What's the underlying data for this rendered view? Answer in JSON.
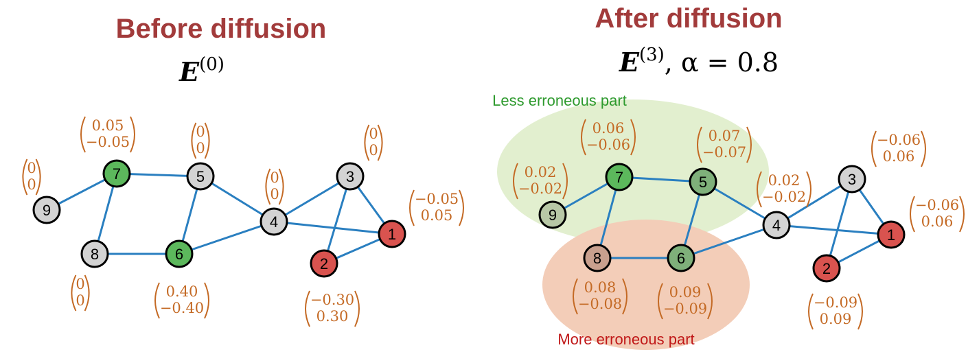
{
  "left_panel": {
    "title": "Before diffusion",
    "formula": {
      "symbol": "E",
      "superscript": "(0)",
      "suffix": ""
    }
  },
  "right_panel": {
    "title": "After diffusion",
    "formula": {
      "symbol": "E",
      "superscript": "(3)",
      "suffix": ", α = 0.8"
    },
    "region_green_label": "Less erroneous part",
    "region_red_label": "More erroneous part"
  },
  "colors": {
    "title": "#a23b3b",
    "edge": "#2a7fc0",
    "vector_text": "#c46a25",
    "node_gray": "#d3d3d3",
    "node_green": "#5cb85c",
    "node_red": "#d9534f",
    "region_green": "#e2efcf",
    "region_red": "#f3cdb8"
  },
  "graphs": [
    {
      "id": "before",
      "nodes": [
        {
          "id": "1",
          "label": "1",
          "fill": "red",
          "vector": [
            "−0.05",
            "0.05"
          ]
        },
        {
          "id": "2",
          "label": "2",
          "fill": "red",
          "vector": [
            "−0.30",
            "0.30"
          ]
        },
        {
          "id": "3",
          "label": "3",
          "fill": "gray",
          "vector": [
            "0",
            "0"
          ]
        },
        {
          "id": "4",
          "label": "4",
          "fill": "gray",
          "vector": [
            "0",
            "0"
          ]
        },
        {
          "id": "5",
          "label": "5",
          "fill": "gray",
          "vector": [
            "0",
            "0"
          ]
        },
        {
          "id": "6",
          "label": "6",
          "fill": "green",
          "vector": [
            "0.40",
            "−0.40"
          ]
        },
        {
          "id": "7",
          "label": "7",
          "fill": "green",
          "vector": [
            "0.05",
            "−0.05"
          ]
        },
        {
          "id": "8",
          "label": "8",
          "fill": "gray",
          "vector": [
            "0",
            "0"
          ]
        },
        {
          "id": "9",
          "label": "9",
          "fill": "gray",
          "vector": [
            "0",
            "0"
          ]
        }
      ]
    },
    {
      "id": "after",
      "nodes": [
        {
          "id": "1",
          "label": "1",
          "fill": "red",
          "vector": [
            "−0.06",
            "0.06"
          ]
        },
        {
          "id": "2",
          "label": "2",
          "fill": "red",
          "vector": [
            "−0.09",
            "0.09"
          ]
        },
        {
          "id": "3",
          "label": "3",
          "fill": "gray",
          "vector": [
            "−0.06",
            "0.06"
          ]
        },
        {
          "id": "4",
          "label": "4",
          "fill": "gray",
          "vector": [
            "0.02",
            "−0.02"
          ]
        },
        {
          "id": "5",
          "label": "5",
          "fill": "green_faded",
          "vector": [
            "0.07",
            "−0.07"
          ]
        },
        {
          "id": "6",
          "label": "6",
          "fill": "green_faded",
          "vector": [
            "0.09",
            "−0.09"
          ]
        },
        {
          "id": "7",
          "label": "7",
          "fill": "green",
          "vector": [
            "0.06",
            "−0.06"
          ]
        },
        {
          "id": "8",
          "label": "8",
          "fill": "brown_faded",
          "vector": [
            "0.08",
            "−0.08"
          ]
        },
        {
          "id": "9",
          "label": "9",
          "fill": "gray_green",
          "vector": [
            "0.02",
            "−0.02"
          ]
        }
      ]
    }
  ],
  "edges": [
    [
      "9",
      "7"
    ],
    [
      "7",
      "5"
    ],
    [
      "7",
      "8"
    ],
    [
      "8",
      "6"
    ],
    [
      "6",
      "5"
    ],
    [
      "5",
      "4"
    ],
    [
      "6",
      "4"
    ],
    [
      "4",
      "3"
    ],
    [
      "4",
      "1"
    ],
    [
      "3",
      "1"
    ],
    [
      "3",
      "2"
    ],
    [
      "2",
      "1"
    ]
  ]
}
